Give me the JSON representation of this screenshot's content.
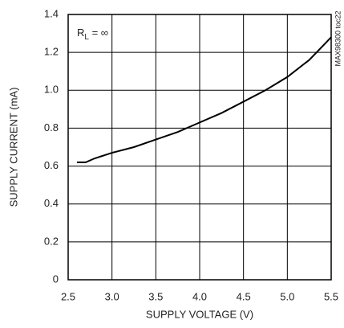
{
  "chart_data": {
    "type": "line",
    "xlabel": "SUPPLY VOLTAGE (V)",
    "ylabel": "SUPPLY CURRENT (mA)",
    "annotation": {
      "main": "R",
      "subscript": "L",
      "suffix": " = ∞"
    },
    "side_note": "MAX98300 toc22",
    "x": [
      2.6,
      2.7,
      2.8,
      3.0,
      3.25,
      3.5,
      3.75,
      4.0,
      4.25,
      4.5,
      4.75,
      5.0,
      5.25,
      5.5
    ],
    "series": [
      {
        "color": "#000000",
        "values": [
          0.62,
          0.62,
          0.64,
          0.67,
          0.7,
          0.74,
          0.78,
          0.83,
          0.88,
          0.94,
          1.0,
          1.07,
          1.16,
          1.28
        ]
      }
    ],
    "xlim": [
      2.5,
      5.5
    ],
    "xticks": [
      2.5,
      {
        "value": 3,
        "label": "3.0"
      },
      3.5,
      {
        "value": 4,
        "label": "4.0"
      },
      4.5,
      {
        "value": 5,
        "label": "5.0"
      },
      5.5
    ],
    "ylim": [
      0,
      1.4
    ],
    "yticks": [
      0,
      0.2,
      0.4,
      0.6,
      0.8,
      {
        "value": 1,
        "label": "1.0"
      },
      1.2,
      1.4
    ],
    "grid": true
  }
}
